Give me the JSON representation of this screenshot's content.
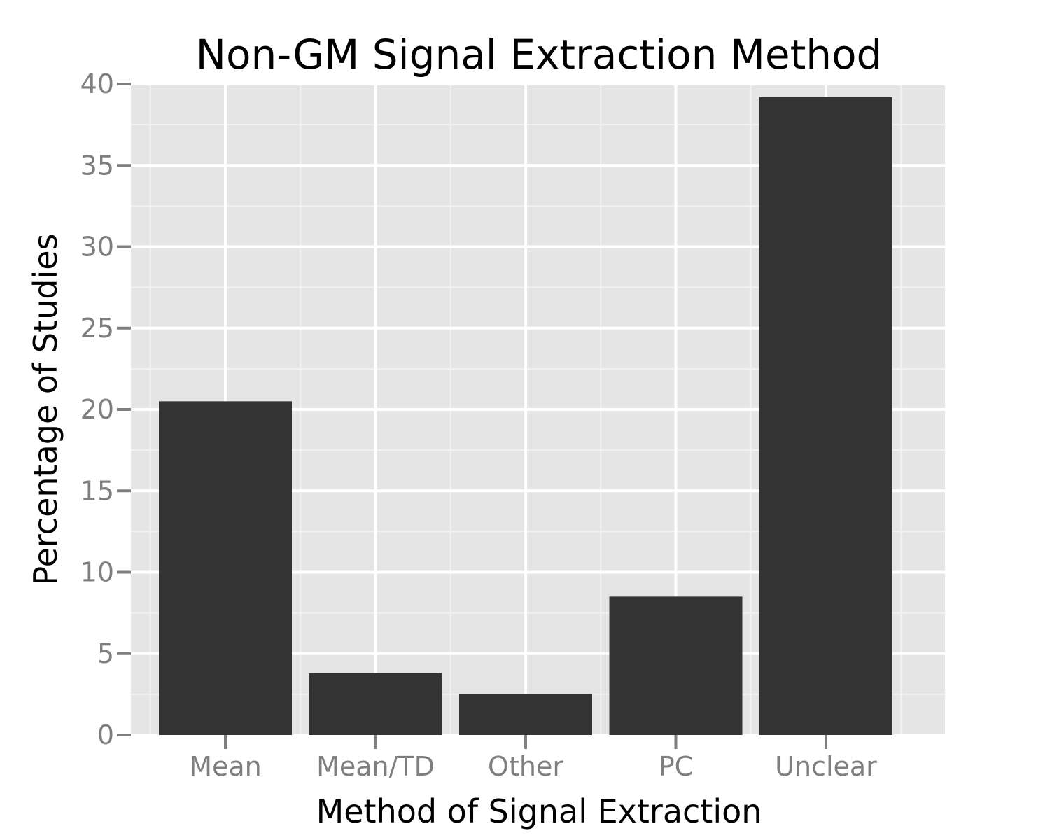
{
  "chart_data": {
    "type": "bar",
    "title": "Non-GM Signal Extraction Method",
    "xlabel": "Method of Signal Extraction",
    "ylabel": "Percentage of Studies",
    "categories": [
      "Mean",
      "Mean/TD",
      "Other",
      "PC",
      "Unclear"
    ],
    "values": [
      20.5,
      3.8,
      2.5,
      8.5,
      39.2
    ],
    "ylim": [
      0,
      40
    ],
    "yticks": [
      "0",
      "5",
      "10",
      "15",
      "20",
      "25",
      "30",
      "35",
      "40"
    ],
    "grid": true,
    "legend": "none",
    "colors": {
      "bar": "#333333",
      "panel": "#e5e5e5",
      "grid_major": "#ffffff",
      "grid_minor": "#f2f2f2",
      "tick": "#7f7f7f"
    }
  }
}
